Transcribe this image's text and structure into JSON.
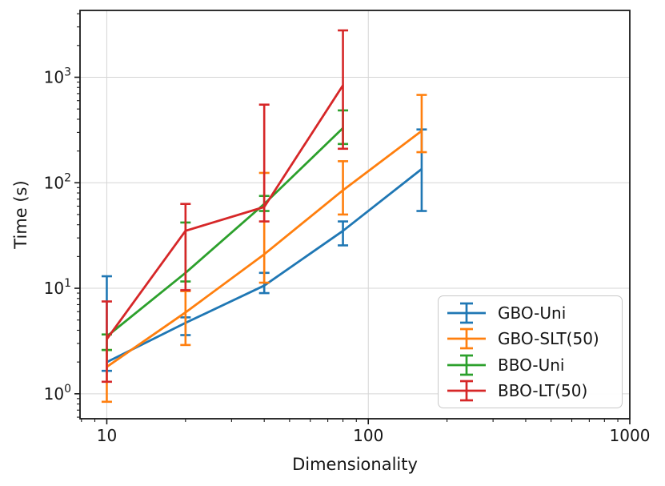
{
  "chart_data": {
    "type": "line",
    "title": "",
    "xlabel": "Dimensionality",
    "ylabel": "Time (s)",
    "x_scale": "log",
    "y_scale": "log",
    "xlim": [
      7.9,
      1000
    ],
    "ylim": [
      0.58,
      4300
    ],
    "grid": true,
    "legend_position": "lower right",
    "x_major_ticks": [
      {
        "value": 10,
        "label": "10"
      },
      {
        "value": 100,
        "label": "100"
      },
      {
        "value": 1000,
        "label": "1000"
      }
    ],
    "y_major_ticks": [
      {
        "value": 1,
        "base": "10",
        "exp": "0"
      },
      {
        "value": 10,
        "base": "10",
        "exp": "1"
      },
      {
        "value": 100,
        "base": "10",
        "exp": "2"
      },
      {
        "value": 1000,
        "base": "10",
        "exp": "3"
      }
    ],
    "series": [
      {
        "name": "GBO-Uni",
        "color": "#1f77b4",
        "x": [
          10,
          20,
          40,
          80,
          160
        ],
        "y": [
          2.0,
          4.7,
          10.6,
          35,
          135
        ],
        "err_lo": [
          1.65,
          3.6,
          9.0,
          25.5,
          54
        ],
        "err_hi": [
          13,
          5.3,
          14,
          43,
          320
        ]
      },
      {
        "name": "GBO-SLT(50)",
        "color": "#ff7f0e",
        "x": [
          10,
          20,
          40,
          80,
          160
        ],
        "y": [
          1.8,
          5.9,
          21,
          85,
          310
        ],
        "err_lo": [
          0.84,
          2.9,
          11.3,
          50,
          195
        ],
        "err_hi": [
          2.6,
          9.4,
          124,
          160,
          680
        ]
      },
      {
        "name": "BBO-Uni",
        "color": "#2ca02c",
        "x": [
          10,
          20,
          40,
          80
        ],
        "y": [
          3.5,
          14,
          63,
          330
        ],
        "err_lo": [
          2.6,
          11.6,
          54,
          233
        ],
        "err_hi": [
          3.65,
          42,
          75,
          485
        ]
      },
      {
        "name": "BBO-LT(50)",
        "color": "#d62728",
        "x": [
          10,
          20,
          40,
          80
        ],
        "y": [
          3.3,
          35,
          59,
          840
        ],
        "err_lo": [
          1.3,
          9.6,
          43,
          210
        ],
        "err_hi": [
          7.5,
          63,
          550,
          2780
        ]
      }
    ]
  }
}
